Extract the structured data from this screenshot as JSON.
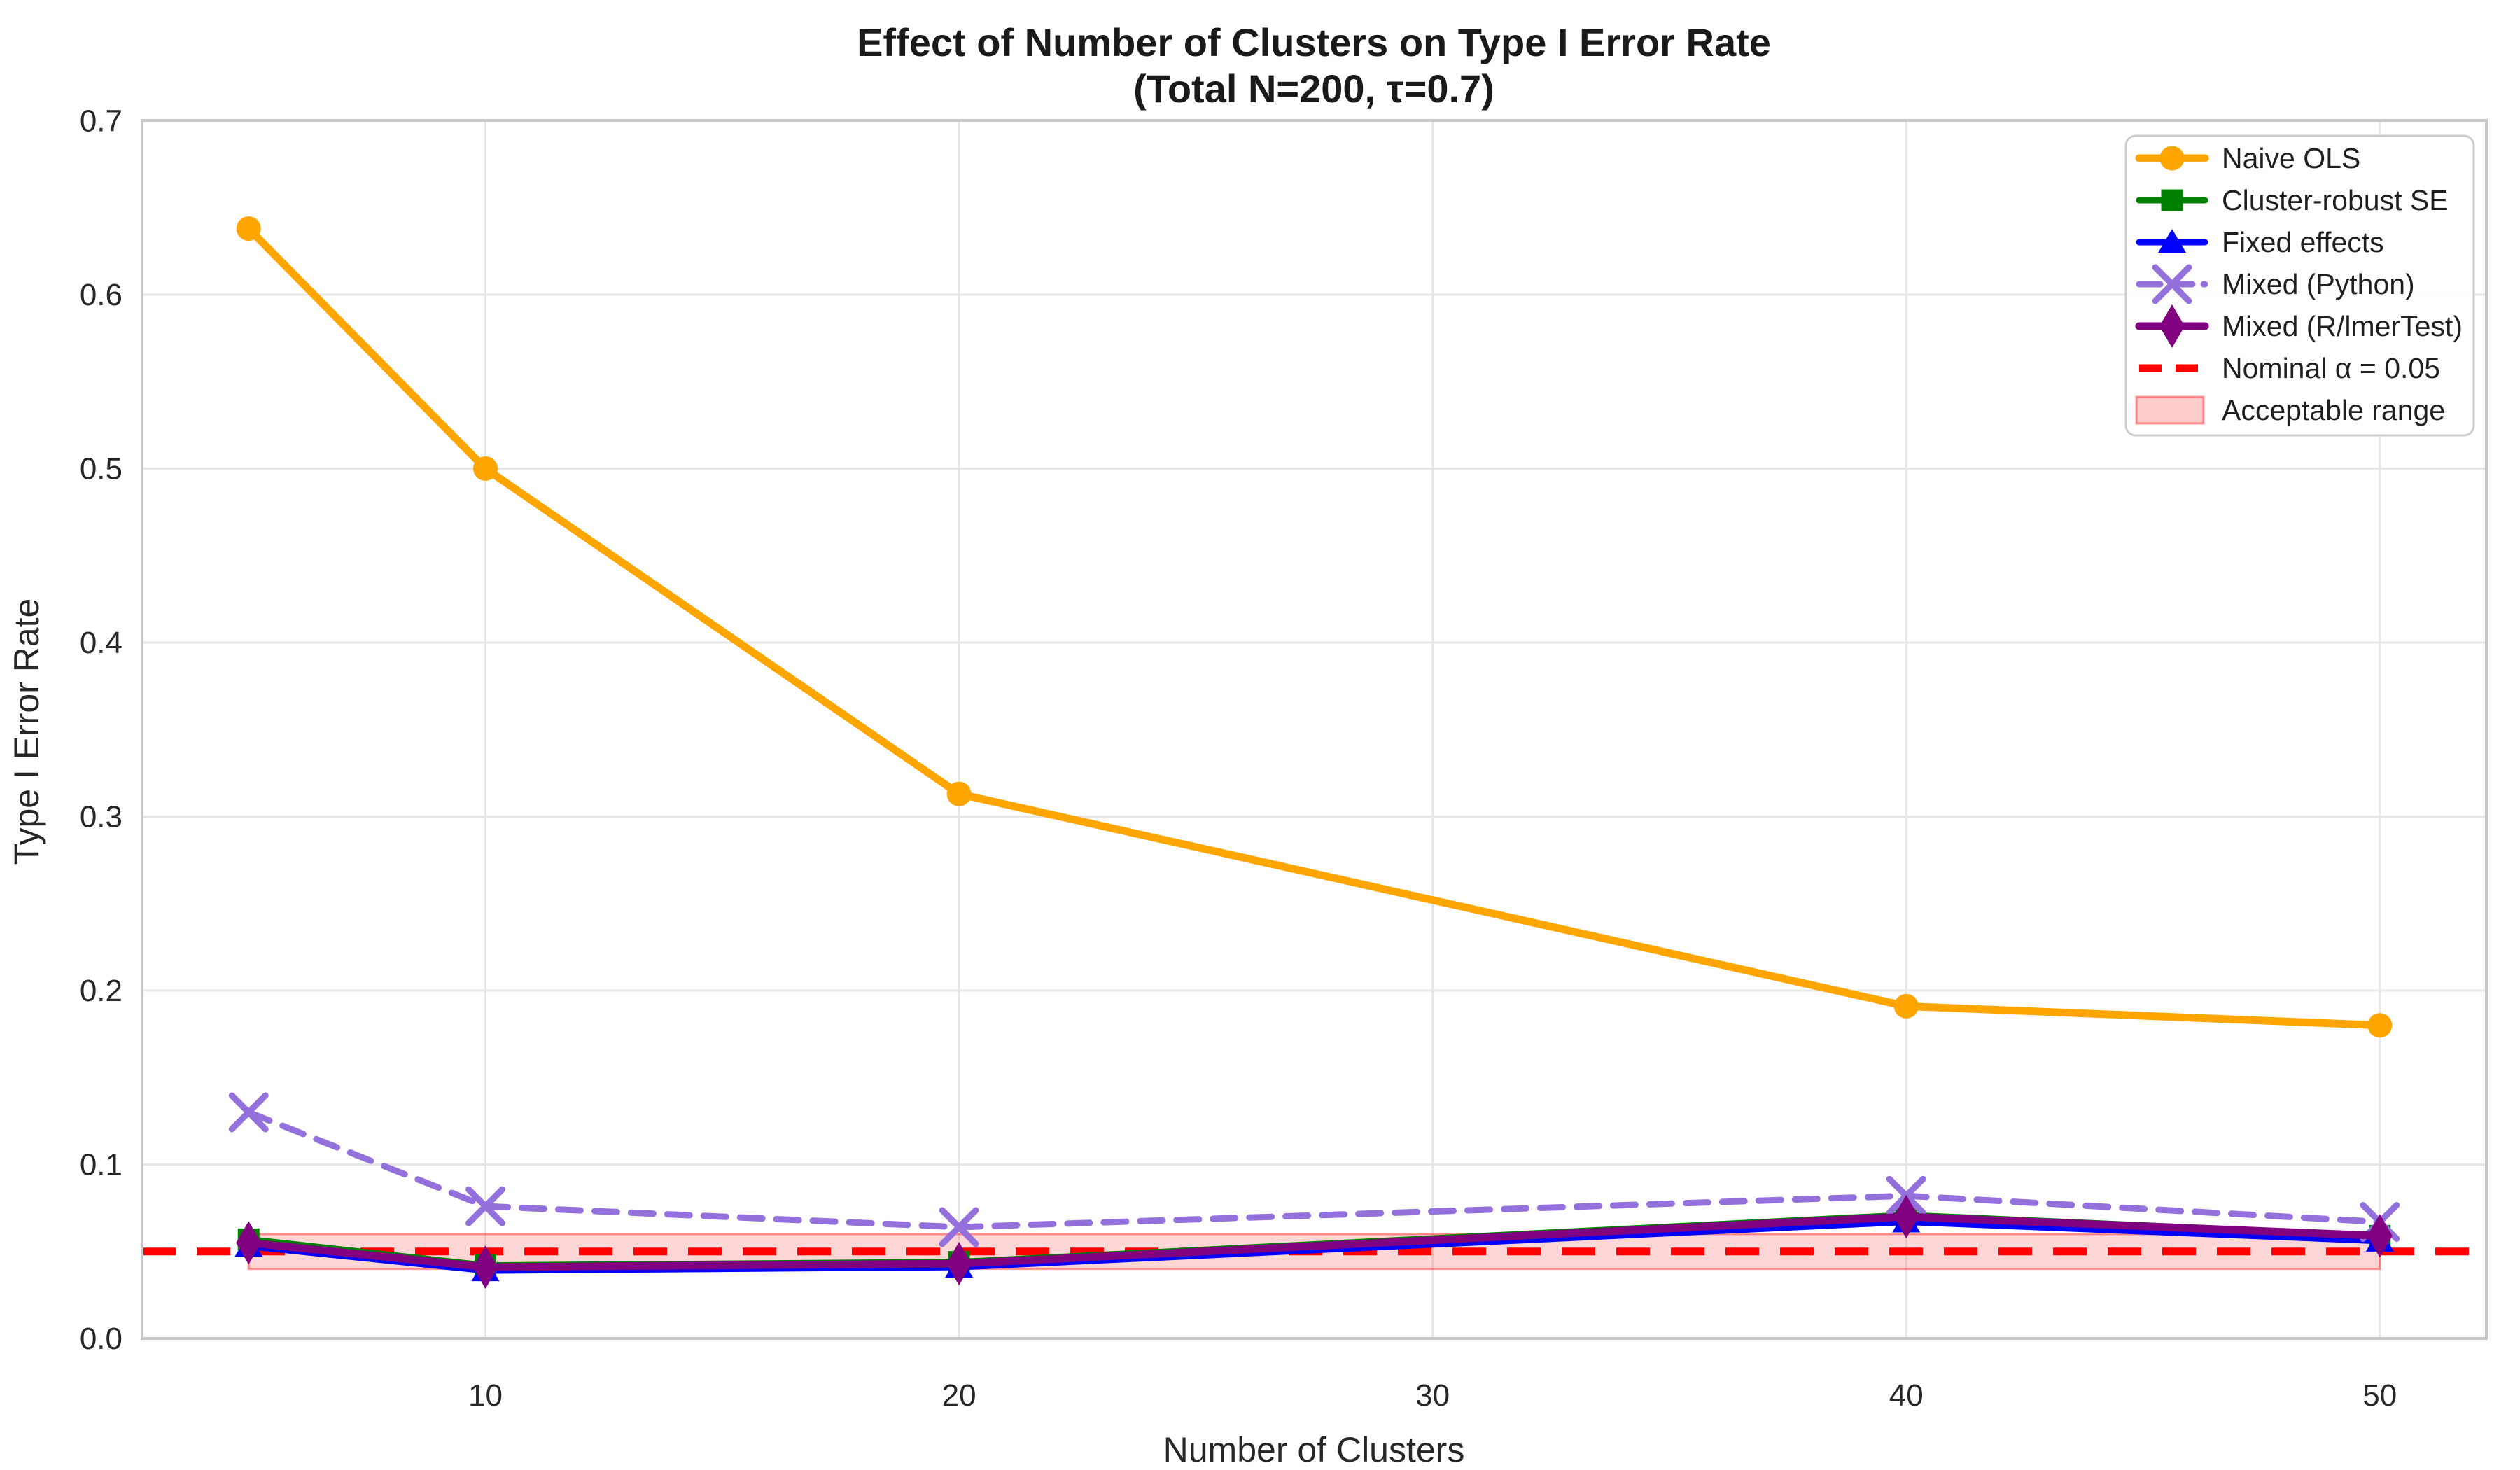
{
  "chart_data": {
    "type": "line",
    "title": "Effect of Number of Clusters on Type I Error Rate",
    "subtitle": "(Total N=200, τ=0.7)",
    "xlabel": "Number of Clusters",
    "ylabel": "Type I Error Rate",
    "x": [
      5,
      10,
      20,
      40,
      50
    ],
    "xlim": [
      2.75,
      52.25
    ],
    "ylim": [
      0,
      0.7
    ],
    "grid": true,
    "legend_position": "upper-right",
    "xticks": {
      "values": [
        10,
        20,
        30,
        40,
        50
      ],
      "labels": [
        "10",
        "20",
        "30",
        "40",
        "50"
      ]
    },
    "yticks": {
      "values": [
        0.0,
        0.1,
        0.2,
        0.3,
        0.4,
        0.5,
        0.6,
        0.7
      ],
      "labels": [
        "0.0",
        "0.1",
        "0.2",
        "0.3",
        "0.4",
        "0.5",
        "0.6",
        "0.7"
      ]
    },
    "series": [
      {
        "name": "Naive OLS",
        "color": "#FFA500",
        "marker": "circle",
        "line": "solid",
        "values": [
          0.638,
          0.5,
          0.313,
          0.191,
          0.18
        ]
      },
      {
        "name": "Cluster-robust SE",
        "color": "#008000",
        "marker": "square",
        "line": "solid",
        "values": [
          0.057,
          0.042,
          0.044,
          0.071,
          0.059
        ]
      },
      {
        "name": "Fixed effects",
        "color": "#0000FF",
        "marker": "triangle-up",
        "line": "solid",
        "values": [
          0.053,
          0.039,
          0.041,
          0.067,
          0.056
        ]
      },
      {
        "name": "Mixed (Python)",
        "color": "#9370DB",
        "marker": "x",
        "line": "dashed",
        "values": [
          0.13,
          0.076,
          0.064,
          0.082,
          0.067
        ]
      },
      {
        "name": "Mixed (R/lmerTest)",
        "color": "#800080",
        "marker": "thin-diamond",
        "line": "solid",
        "values": [
          0.055,
          0.041,
          0.043,
          0.07,
          0.059
        ]
      }
    ],
    "reference_line": {
      "label": "Nominal α = 0.05",
      "value": 0.05,
      "color": "#FF0000",
      "line": "dashed"
    },
    "acceptable_range": {
      "label": "Acceptable range",
      "low": 0.04,
      "high": 0.06,
      "x_start": 5,
      "x_end": 50,
      "color": "#FF0000",
      "fill_opacity": 0.16,
      "edge_opacity": 0.4
    },
    "legend": [
      {
        "label": "Naive OLS"
      },
      {
        "label": "Cluster-robust SE"
      },
      {
        "label": "Fixed effects"
      },
      {
        "label": "Mixed (Python)"
      },
      {
        "label": "Mixed (R/lmerTest)"
      },
      {
        "label": "Nominal α = 0.05"
      },
      {
        "label": "Acceptable range"
      }
    ],
    "colors": {
      "grid": "#E7E7E7",
      "frame": "#C8C8C8",
      "background": "#FFFFFF",
      "text": "#262626"
    }
  }
}
